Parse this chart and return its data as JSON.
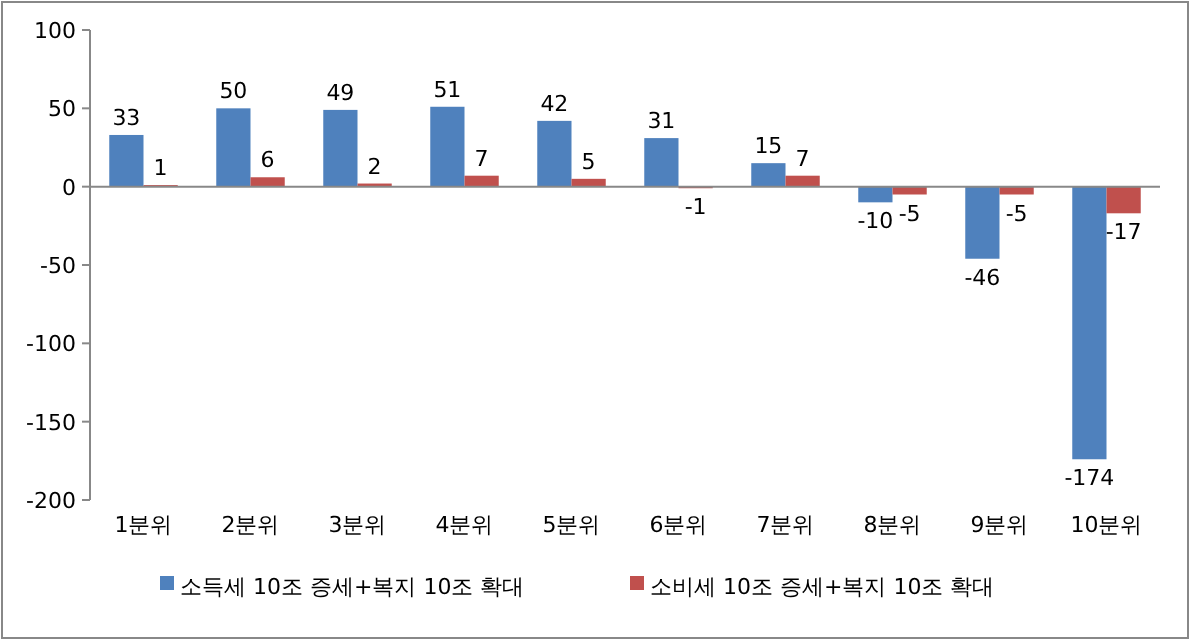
{
  "chart_data": {
    "type": "bar",
    "categories": [
      "1분위",
      "2분위",
      "3분위",
      "4분위",
      "5분위",
      "6분위",
      "7분위",
      "8분위",
      "9분위",
      "10분위"
    ],
    "series": [
      {
        "name": "소득세 10조 증세+복지 10조 확대",
        "color": "#4f81bd",
        "values": [
          33,
          50,
          49,
          51,
          42,
          31,
          15,
          -10,
          -46,
          -174
        ]
      },
      {
        "name": "소비세 10조 증세+복지 10조 확대",
        "color": "#c0504d",
        "values": [
          1,
          6,
          2,
          7,
          5,
          -1,
          7,
          -5,
          -5,
          -17
        ]
      }
    ],
    "ylim": [
      -200,
      100
    ],
    "yticks": [
      -200,
      -150,
      -100,
      -50,
      0,
      50,
      100
    ],
    "data_labels": true,
    "legend": "bottom"
  }
}
